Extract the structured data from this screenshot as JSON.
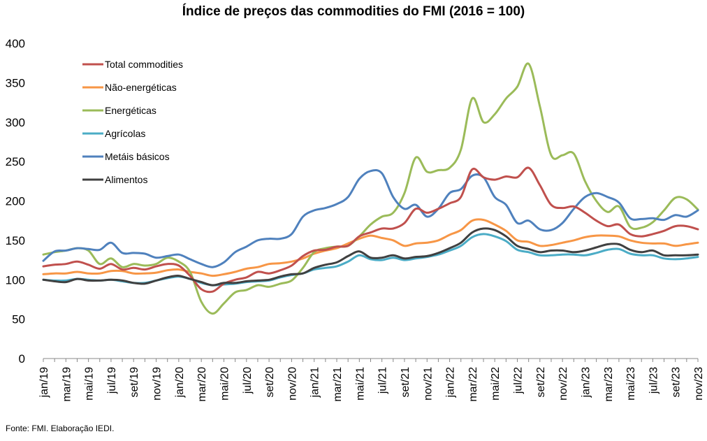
{
  "chart_data": {
    "type": "line",
    "title": "Índice de preços das commodities do FMI  (2016 = 100)",
    "source": "Fonte: FMI. Elaboração IEDI.",
    "ylim": [
      0,
      400
    ],
    "yticks": [
      0,
      50,
      100,
      150,
      200,
      250,
      300,
      350,
      400
    ],
    "grid": false,
    "legend_position": "top-left",
    "x": [
      "jan/19",
      "fev/19",
      "mar/19",
      "abr/19",
      "mai/19",
      "jun/19",
      "jul/19",
      "ago/19",
      "set/19",
      "out/19",
      "nov/19",
      "dez/19",
      "jan/20",
      "fev/20",
      "mar/20",
      "abr/20",
      "mai/20",
      "jun/20",
      "jul/20",
      "ago/20",
      "set/20",
      "out/20",
      "nov/20",
      "dez/20",
      "jan/21",
      "fev/21",
      "mar/21",
      "abr/21",
      "mai/21",
      "jun/21",
      "jul/21",
      "ago/21",
      "set/21",
      "out/21",
      "nov/21",
      "dez/21",
      "jan/22",
      "fev/22",
      "mar/22",
      "abr/22",
      "mai/22",
      "jun/22",
      "jul/22",
      "ago/22",
      "set/22",
      "out/22",
      "nov/22",
      "dez/22",
      "jan/23",
      "fev/23",
      "mar/23",
      "abr/23",
      "mai/23",
      "jun/23",
      "jul/23",
      "ago/23",
      "set/23",
      "out/23",
      "nov/23"
    ],
    "xtick_labels": [
      "jan/19",
      "mar/19",
      "mai/19",
      "jul/19",
      "set/19",
      "nov/19",
      "jan/20",
      "mar/20",
      "mai/20",
      "jul/20",
      "set/20",
      "nov/20",
      "jan/21",
      "mar/21",
      "mai/21",
      "jul/21",
      "set/21",
      "nov/21",
      "jan/22",
      "mar/22",
      "mai/22",
      "jul/22",
      "set/22",
      "nov/22",
      "jan/23",
      "mar/23",
      "mai/23",
      "jul/23",
      "set/23",
      "nov/23"
    ],
    "series": [
      {
        "name": "Total commodities",
        "color": "#c0504d",
        "values": [
          117,
          119,
          120,
          123,
          119,
          114,
          120,
          113,
          115,
          113,
          117,
          120,
          118,
          105,
          88,
          85,
          95,
          100,
          103,
          110,
          108,
          112,
          118,
          130,
          137,
          138,
          142,
          143,
          155,
          160,
          165,
          165,
          172,
          190,
          185,
          190,
          197,
          205,
          240,
          230,
          227,
          231,
          230,
          242,
          220,
          195,
          191,
          193,
          185,
          175,
          168,
          170,
          158,
          155,
          158,
          162,
          168,
          168,
          164
        ]
      },
      {
        "name": "Não-energéticas",
        "color": "#f79646",
        "values": [
          107,
          108,
          108,
          110,
          108,
          108,
          111,
          111,
          108,
          108,
          109,
          112,
          113,
          110,
          108,
          105,
          107,
          110,
          114,
          116,
          120,
          121,
          123,
          127,
          133,
          137,
          140,
          146,
          152,
          156,
          153,
          150,
          143,
          146,
          147,
          150,
          157,
          163,
          175,
          176,
          170,
          162,
          150,
          148,
          143,
          144,
          147,
          150,
          154,
          156,
          156,
          155,
          150,
          147,
          146,
          146,
          143,
          145,
          147
        ]
      },
      {
        "name": "Energéticas",
        "color": "#9bbb59",
        "values": [
          132,
          135,
          137,
          140,
          137,
          120,
          127,
          116,
          120,
          118,
          120,
          128,
          123,
          110,
          72,
          57,
          70,
          84,
          87,
          93,
          91,
          95,
          99,
          115,
          135,
          140,
          142,
          143,
          155,
          170,
          180,
          185,
          210,
          255,
          237,
          239,
          242,
          265,
          330,
          300,
          310,
          330,
          345,
          374,
          320,
          258,
          258,
          260,
          225,
          200,
          186,
          193,
          167,
          166,
          173,
          188,
          204,
          202,
          189
        ]
      },
      {
        "name": "Agrícolas",
        "color": "#4bacc6",
        "values": [
          100,
          99,
          99,
          101,
          100,
          99,
          100,
          98,
          96,
          96,
          99,
          102,
          104,
          101,
          96,
          93,
          94,
          95,
          97,
          98,
          99,
          103,
          106,
          108,
          113,
          115,
          117,
          123,
          131,
          126,
          125,
          128,
          125,
          127,
          129,
          132,
          137,
          143,
          154,
          158,
          155,
          149,
          138,
          135,
          131,
          131,
          132,
          132,
          131,
          134,
          138,
          139,
          133,
          131,
          131,
          127,
          126,
          127,
          129
        ]
      },
      {
        "name": "Metáis básicos",
        "color": "#4f81bd",
        "values": [
          124,
          136,
          137,
          140,
          139,
          138,
          147,
          134,
          134,
          133,
          128,
          130,
          132,
          126,
          120,
          116,
          122,
          135,
          142,
          150,
          152,
          152,
          158,
          180,
          188,
          191,
          196,
          205,
          228,
          238,
          235,
          205,
          190,
          195,
          180,
          190,
          210,
          215,
          232,
          230,
          205,
          195,
          172,
          175,
          164,
          163,
          172,
          190,
          205,
          210,
          205,
          198,
          178,
          177,
          178,
          176,
          182,
          180,
          188
        ]
      },
      {
        "name": "Alimentos",
        "color": "#404040",
        "values": [
          100,
          98,
          97,
          101,
          99,
          99,
          100,
          99,
          96,
          95,
          99,
          103,
          105,
          101,
          97,
          93,
          96,
          96,
          98,
          99,
          100,
          104,
          107,
          108,
          115,
          119,
          122,
          130,
          136,
          128,
          128,
          131,
          127,
          129,
          130,
          134,
          140,
          147,
          160,
          165,
          163,
          155,
          143,
          139,
          135,
          137,
          137,
          135,
          137,
          141,
          145,
          145,
          138,
          135,
          137,
          131,
          131,
          131,
          132
        ]
      }
    ]
  }
}
